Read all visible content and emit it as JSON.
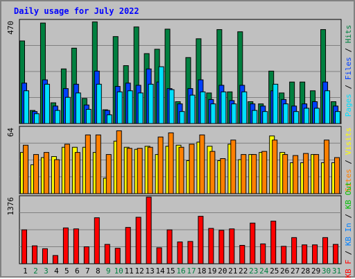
{
  "title": "Daily usage for July 2022",
  "colors": {
    "hits": "#008040",
    "files": "#0040ff",
    "pages": "#00e0ff",
    "visits": "#ffff00",
    "sites": "#ff8000",
    "kbin": "#0080ff",
    "kbout": "#00c000",
    "kbf": "#ff0000",
    "weekend": "#008040",
    "weekday": "#000000",
    "bg": "#c0c0c0",
    "grid": "#808080"
  },
  "chart_data": [
    {
      "type": "bar",
      "title": "Daily usage for July 2022",
      "panel": "top",
      "scale_label": "470",
      "right_labels": [
        "Pages",
        "Files",
        "Hits"
      ],
      "ylim": [
        0,
        470
      ],
      "categories": [
        "1",
        "2",
        "3",
        "4",
        "5",
        "6",
        "7",
        "8",
        "9",
        "10",
        "11",
        "12",
        "13",
        "14",
        "15",
        "16",
        "17",
        "18",
        "19",
        "20",
        "21",
        "22",
        "23",
        "24",
        "25",
        "26",
        "27",
        "28",
        "29",
        "30",
        "31"
      ],
      "series": [
        {
          "name": "Hits",
          "values": [
            378,
            60,
            460,
            95,
            250,
            345,
            115,
            465,
            63,
            398,
            265,
            442,
            320,
            340,
            432,
            100,
            302,
            388,
            140,
            430,
            145,
            420,
            100,
            90,
            240,
            140,
            190,
            190,
            150,
            430,
            100
          ]
        },
        {
          "name": "Files",
          "values": [
            185,
            55,
            200,
            80,
            160,
            180,
            85,
            240,
            60,
            170,
            185,
            175,
            250,
            190,
            160,
            90,
            160,
            200,
            110,
            175,
            105,
            175,
            90,
            80,
            150,
            110,
            80,
            90,
            100,
            190,
            80
          ]
        },
        {
          "name": "Pages",
          "values": [
            150,
            45,
            180,
            60,
            120,
            140,
            65,
            180,
            40,
            145,
            150,
            140,
            180,
            260,
            155,
            55,
            130,
            145,
            90,
            145,
            90,
            145,
            60,
            55,
            180,
            90,
            55,
            70,
            70,
            150,
            55
          ]
        }
      ]
    },
    {
      "type": "bar",
      "panel": "middle",
      "scale_label": "64",
      "right_labels": [
        "Sites",
        "Visits"
      ],
      "ylim": [
        0,
        64
      ],
      "categories": [
        "1",
        "2",
        "3",
        "4",
        "5",
        "6",
        "7",
        "8",
        "9",
        "10",
        "11",
        "12",
        "13",
        "14",
        "15",
        "16",
        "17",
        "18",
        "19",
        "20",
        "21",
        "22",
        "23",
        "24",
        "25",
        "26",
        "27",
        "28",
        "29",
        "30",
        "31"
      ],
      "series": [
        {
          "name": "Visits",
          "values": [
            40,
            28,
            35,
            36,
            45,
            45,
            45,
            40,
            15,
            51,
            45,
            43,
            46,
            38,
            46,
            47,
            32,
            50,
            46,
            32,
            48,
            33,
            38,
            40,
            56,
            40,
            30,
            30,
            38,
            30,
            30
          ]
        },
        {
          "name": "Sites",
          "values": [
            47,
            38,
            40,
            33,
            48,
            40,
            57,
            57,
            38,
            61,
            44,
            44,
            45,
            55,
            59,
            45,
            48,
            57,
            41,
            34,
            52,
            38,
            38,
            41,
            52,
            38,
            37,
            39,
            38,
            52,
            35
          ]
        }
      ]
    },
    {
      "type": "bar",
      "panel": "bottom",
      "scale_label": "1376",
      "right_labels": [
        "KB F",
        "KB In",
        "KB Out"
      ],
      "ylim": [
        0,
        1376
      ],
      "categories": [
        "1",
        "2",
        "3",
        "4",
        "5",
        "6",
        "7",
        "8",
        "9",
        "10",
        "11",
        "12",
        "13",
        "14",
        "15",
        "16",
        "17",
        "18",
        "19",
        "20",
        "21",
        "22",
        "23",
        "24",
        "25",
        "26",
        "27",
        "28",
        "29",
        "30",
        "31"
      ],
      "series": [
        {
          "name": "KB F",
          "values": [
            700,
            370,
            310,
            170,
            740,
            720,
            350,
            950,
            400,
            320,
            750,
            960,
            1376,
            330,
            700,
            450,
            460,
            980,
            730,
            690,
            720,
            380,
            840,
            410,
            880,
            360,
            540,
            390,
            390,
            540,
            400
          ]
        }
      ]
    }
  ],
  "day_labels": [
    "1",
    "2",
    "3",
    "4",
    "5",
    "6",
    "7",
    "8",
    "9",
    "10",
    "11",
    "12",
    "13",
    "14",
    "15",
    "16",
    "17",
    "18",
    "19",
    "20",
    "21",
    "22",
    "23",
    "24",
    "25",
    "26",
    "27",
    "28",
    "29",
    "30",
    "31"
  ],
  "weekends": [
    2,
    3,
    9,
    10,
    16,
    17,
    23,
    24,
    30,
    31
  ]
}
